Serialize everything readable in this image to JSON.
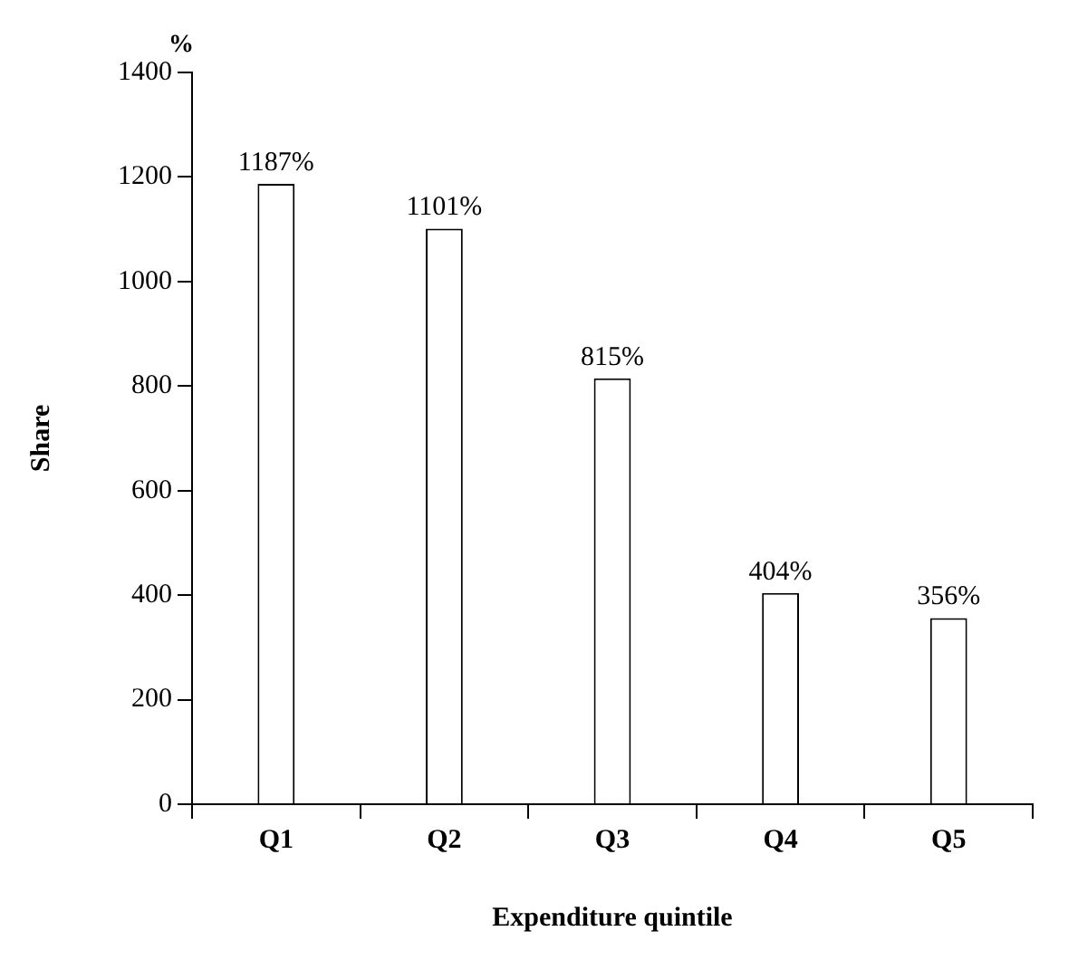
{
  "chart_data": {
    "type": "bar",
    "xlabel": "Expenditure quintile",
    "ylabel": "Share",
    "annotations": [
      "%"
    ],
    "categories": [
      "Q1",
      "Q2",
      "Q3",
      "Q4",
      "Q5"
    ],
    "values": [
      1187,
      1101,
      815,
      404,
      356
    ],
    "value_labels": [
      "1187%",
      "1101%",
      "815%",
      "404%",
      "356%"
    ],
    "color": "#ffffff",
    "ylim": [
      0,
      1400
    ],
    "yticks": [
      0,
      200,
      400,
      600,
      800,
      1000,
      1200,
      1400
    ],
    "grid": false,
    "legend": false
  }
}
